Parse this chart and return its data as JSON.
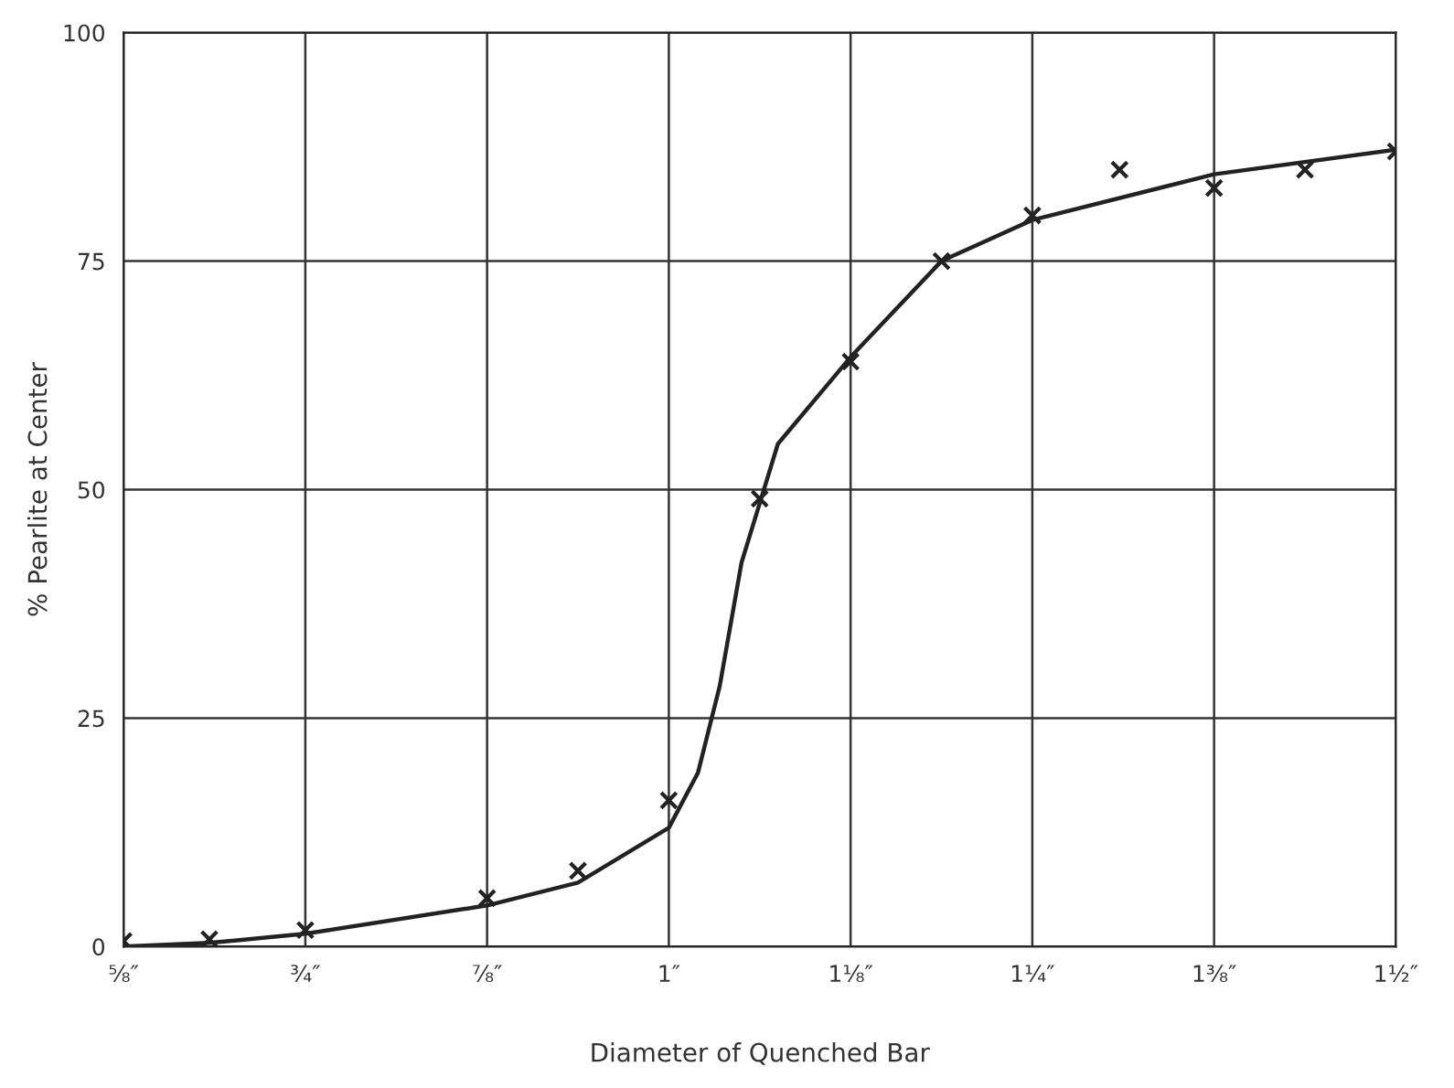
{
  "chart_data": {
    "type": "scatter",
    "xlabel": "Diameter of Quenched Bar",
    "ylabel": "% Pearlite at Center",
    "xlim": [
      0.625,
      1.5
    ],
    "ylim": [
      0,
      100
    ],
    "xticks": [
      {
        "value": 0.625,
        "label": "⅝″"
      },
      {
        "value": 0.75,
        "label": "¾″"
      },
      {
        "value": 0.875,
        "label": "⅞″"
      },
      {
        "value": 1.0,
        "label": "1″"
      },
      {
        "value": 1.125,
        "label": "1⅛″"
      },
      {
        "value": 1.25,
        "label": "1¼″"
      },
      {
        "value": 1.375,
        "label": "1⅜″"
      },
      {
        "value": 1.5,
        "label": "1½″"
      }
    ],
    "yticks": [
      0,
      25,
      50,
      75,
      100
    ],
    "grid": true,
    "series": [
      {
        "color": "#222222",
        "marker": "cross",
        "x": [
          0.625,
          0.684,
          0.75,
          0.875,
          0.9375,
          1.0,
          1.0625,
          1.125,
          1.1875,
          1.25,
          1.31,
          1.375,
          1.4375,
          1.5
        ],
        "values": [
          0.6,
          0.8,
          1.8,
          5.3,
          8.3,
          16,
          49,
          64,
          75,
          80,
          85,
          83,
          85,
          87
        ]
      },
      {
        "type": "line",
        "color": "#222222",
        "line_style": "solid",
        "marker": "none",
        "x": [
          0.625,
          0.684,
          0.75,
          0.875,
          0.9375,
          1.0,
          1.02,
          1.035,
          1.05,
          1.075,
          1.125,
          1.1875,
          1.25,
          1.375,
          1.5
        ],
        "values": [
          0,
          0.4,
          1.4,
          4.5,
          7,
          13,
          19,
          28.5,
          42,
          55,
          64.5,
          75,
          79.5,
          84.5,
          87.2
        ]
      }
    ]
  }
}
